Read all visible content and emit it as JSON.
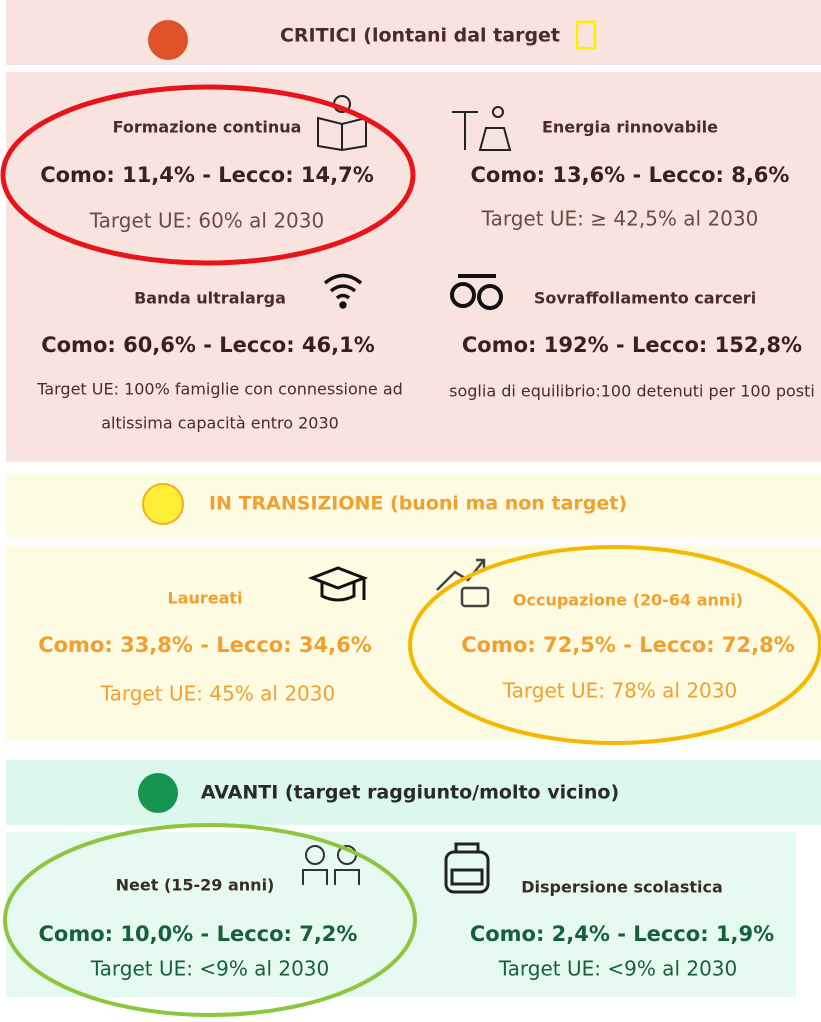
{
  "sections": [
    {
      "header": "CRITICI (lontani dal target",
      "items": [
        {
          "title": "Formazione continua",
          "values": "Como: 11,4% - Lecco: 14,7%",
          "target": [
            "Target UE: 60% al 2030"
          ]
        },
        {
          "title": "Energia rinnovabile",
          "values": "Como: 13,6% - Lecco: 8,6%",
          "target": [
            "Target UE: ≥ 42,5% al 2030"
          ]
        },
        {
          "title": "Banda ultralarga",
          "values": "Como: 60,6% - Lecco: 46,1%",
          "target": [
            "Target UE: 100% famiglie con connessione ad",
            "altissima capacità entro 2030"
          ]
        },
        {
          "title": "Sovraffollamento carceri",
          "values": "Como: 192% - Lecco: 152,8%",
          "target": [
            "soglia di equilibrio:100 detenuti per 100 posti"
          ]
        }
      ]
    },
    {
      "header": "IN TRANSIZIONE (buoni ma non target)",
      "items": [
        {
          "title": "Laureati",
          "values": "Como: 33,8% - Lecco: 34,6%",
          "target": [
            "Target UE: 45% al 2030"
          ]
        },
        {
          "title": "Occupazione (20-64 anni)",
          "values": "Como: 72,5% - Lecco: 72,8%",
          "target": [
            "Target UE: 78% al 2030"
          ]
        }
      ]
    },
    {
      "header": "AVANTI (target raggiunto/molto vicino)",
      "items": [
        {
          "title": "Neet (15-29 anni)",
          "values": "Como: 10,0% - Lecco: 7,2%",
          "target": [
            "Target UE: <9% al 2030"
          ]
        },
        {
          "title": "Dispersione scolastica",
          "values": "Como: 2,4% - Lecco: 1,9%",
          "target": [
            "Target UE: <9% al 2030"
          ]
        }
      ]
    }
  ]
}
